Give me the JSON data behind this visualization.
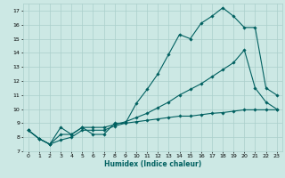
{
  "xlabel": "Humidex (Indice chaleur)",
  "xlim": [
    -0.5,
    23.5
  ],
  "ylim": [
    7,
    17.5
  ],
  "xticks": [
    0,
    1,
    2,
    3,
    4,
    5,
    6,
    7,
    8,
    9,
    10,
    11,
    12,
    13,
    14,
    15,
    16,
    17,
    18,
    19,
    20,
    21,
    22,
    23
  ],
  "yticks": [
    7,
    8,
    9,
    10,
    11,
    12,
    13,
    14,
    15,
    16,
    17
  ],
  "bg_color": "#cce8e4",
  "grid_color": "#aacfcb",
  "line_color": "#006060",
  "line1_x": [
    0,
    1,
    2,
    3,
    4,
    5,
    6,
    7,
    8,
    9,
    10,
    11,
    12,
    13,
    14,
    15,
    16,
    17,
    18,
    19,
    20,
    21,
    22,
    23
  ],
  "line1_y": [
    8.5,
    7.9,
    7.5,
    8.7,
    8.2,
    8.7,
    8.2,
    8.2,
    9.0,
    9.0,
    10.4,
    11.4,
    12.5,
    13.9,
    15.3,
    15.0,
    16.1,
    16.6,
    17.2,
    16.6,
    15.8,
    15.8,
    11.5,
    11.0
  ],
  "line2_x": [
    0,
    1,
    2,
    3,
    4,
    5,
    6,
    7,
    8,
    9,
    10,
    11,
    12,
    13,
    14,
    15,
    16,
    17,
    18,
    19,
    20,
    21,
    22,
    23
  ],
  "line2_y": [
    8.5,
    7.9,
    7.5,
    8.2,
    8.2,
    8.7,
    8.7,
    8.7,
    8.9,
    9.1,
    9.4,
    9.7,
    10.1,
    10.5,
    11.0,
    11.4,
    11.8,
    12.3,
    12.8,
    13.3,
    14.2,
    11.5,
    10.5,
    10.0
  ],
  "line3_x": [
    0,
    1,
    2,
    3,
    4,
    5,
    6,
    7,
    8,
    9,
    10,
    11,
    12,
    13,
    14,
    15,
    16,
    17,
    18,
    19,
    20,
    21,
    22,
    23
  ],
  "line3_y": [
    8.5,
    7.9,
    7.5,
    7.8,
    8.0,
    8.5,
    8.5,
    8.5,
    8.8,
    9.0,
    9.1,
    9.2,
    9.3,
    9.4,
    9.5,
    9.5,
    9.6,
    9.7,
    9.75,
    9.85,
    9.95,
    9.95,
    9.95,
    9.95
  ]
}
